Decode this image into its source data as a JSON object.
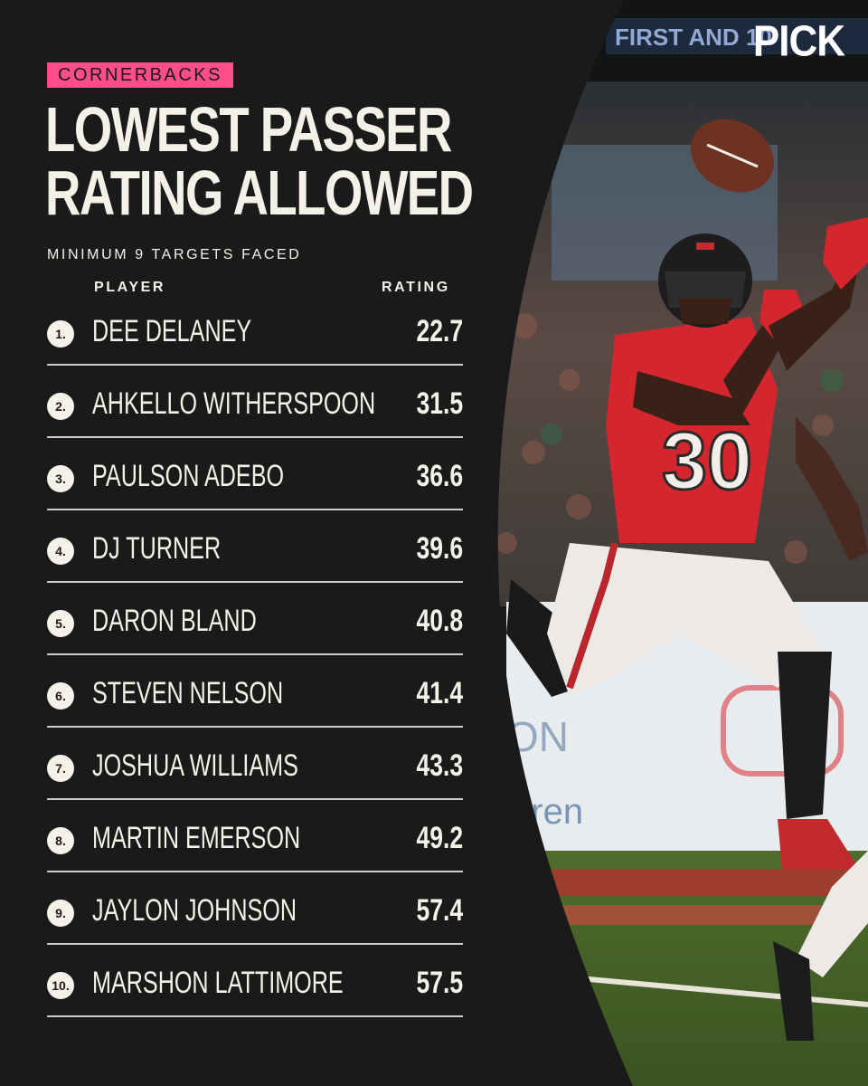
{
  "brand": {
    "logo_text": "PICK"
  },
  "header": {
    "kicker": "CORNERBACKS",
    "title_line1": "LOWEST PASSER",
    "title_line2": "RATING ALLOWED",
    "subtitle": "MINIMUM 9 TARGETS FACED"
  },
  "table": {
    "columns": {
      "player": "PLAYER",
      "rating": "RATING"
    },
    "rows": [
      {
        "rank": "1.",
        "player": "DEE DELANEY",
        "rating": "22.7"
      },
      {
        "rank": "2.",
        "player": "AHKELLO WITHERSPOON",
        "rating": "31.5"
      },
      {
        "rank": "3.",
        "player": "PAULSON ADEBO",
        "rating": "36.6"
      },
      {
        "rank": "4.",
        "player": "DJ TURNER",
        "rating": "39.6"
      },
      {
        "rank": "5.",
        "player": "DARON BLAND",
        "rating": "40.8"
      },
      {
        "rank": "6.",
        "player": "STEVEN NELSON",
        "rating": "41.4"
      },
      {
        "rank": "7.",
        "player": "JOSHUA WILLIAMS",
        "rating": "43.3"
      },
      {
        "rank": "8.",
        "player": "MARTIN EMERSON",
        "rating": "49.2"
      },
      {
        "rank": "9.",
        "player": "JAYLON JOHNSON",
        "rating": "57.4"
      },
      {
        "rank": "10.",
        "player": "MARSHON LATTIMORE",
        "rating": "57.5"
      }
    ]
  },
  "colors": {
    "background": "#1a1a1a",
    "text": "#f4f1e8",
    "accent_pink": "#ff4c8b",
    "jersey_red": "#d4262e"
  },
  "photo": {
    "jersey_number": "30"
  }
}
